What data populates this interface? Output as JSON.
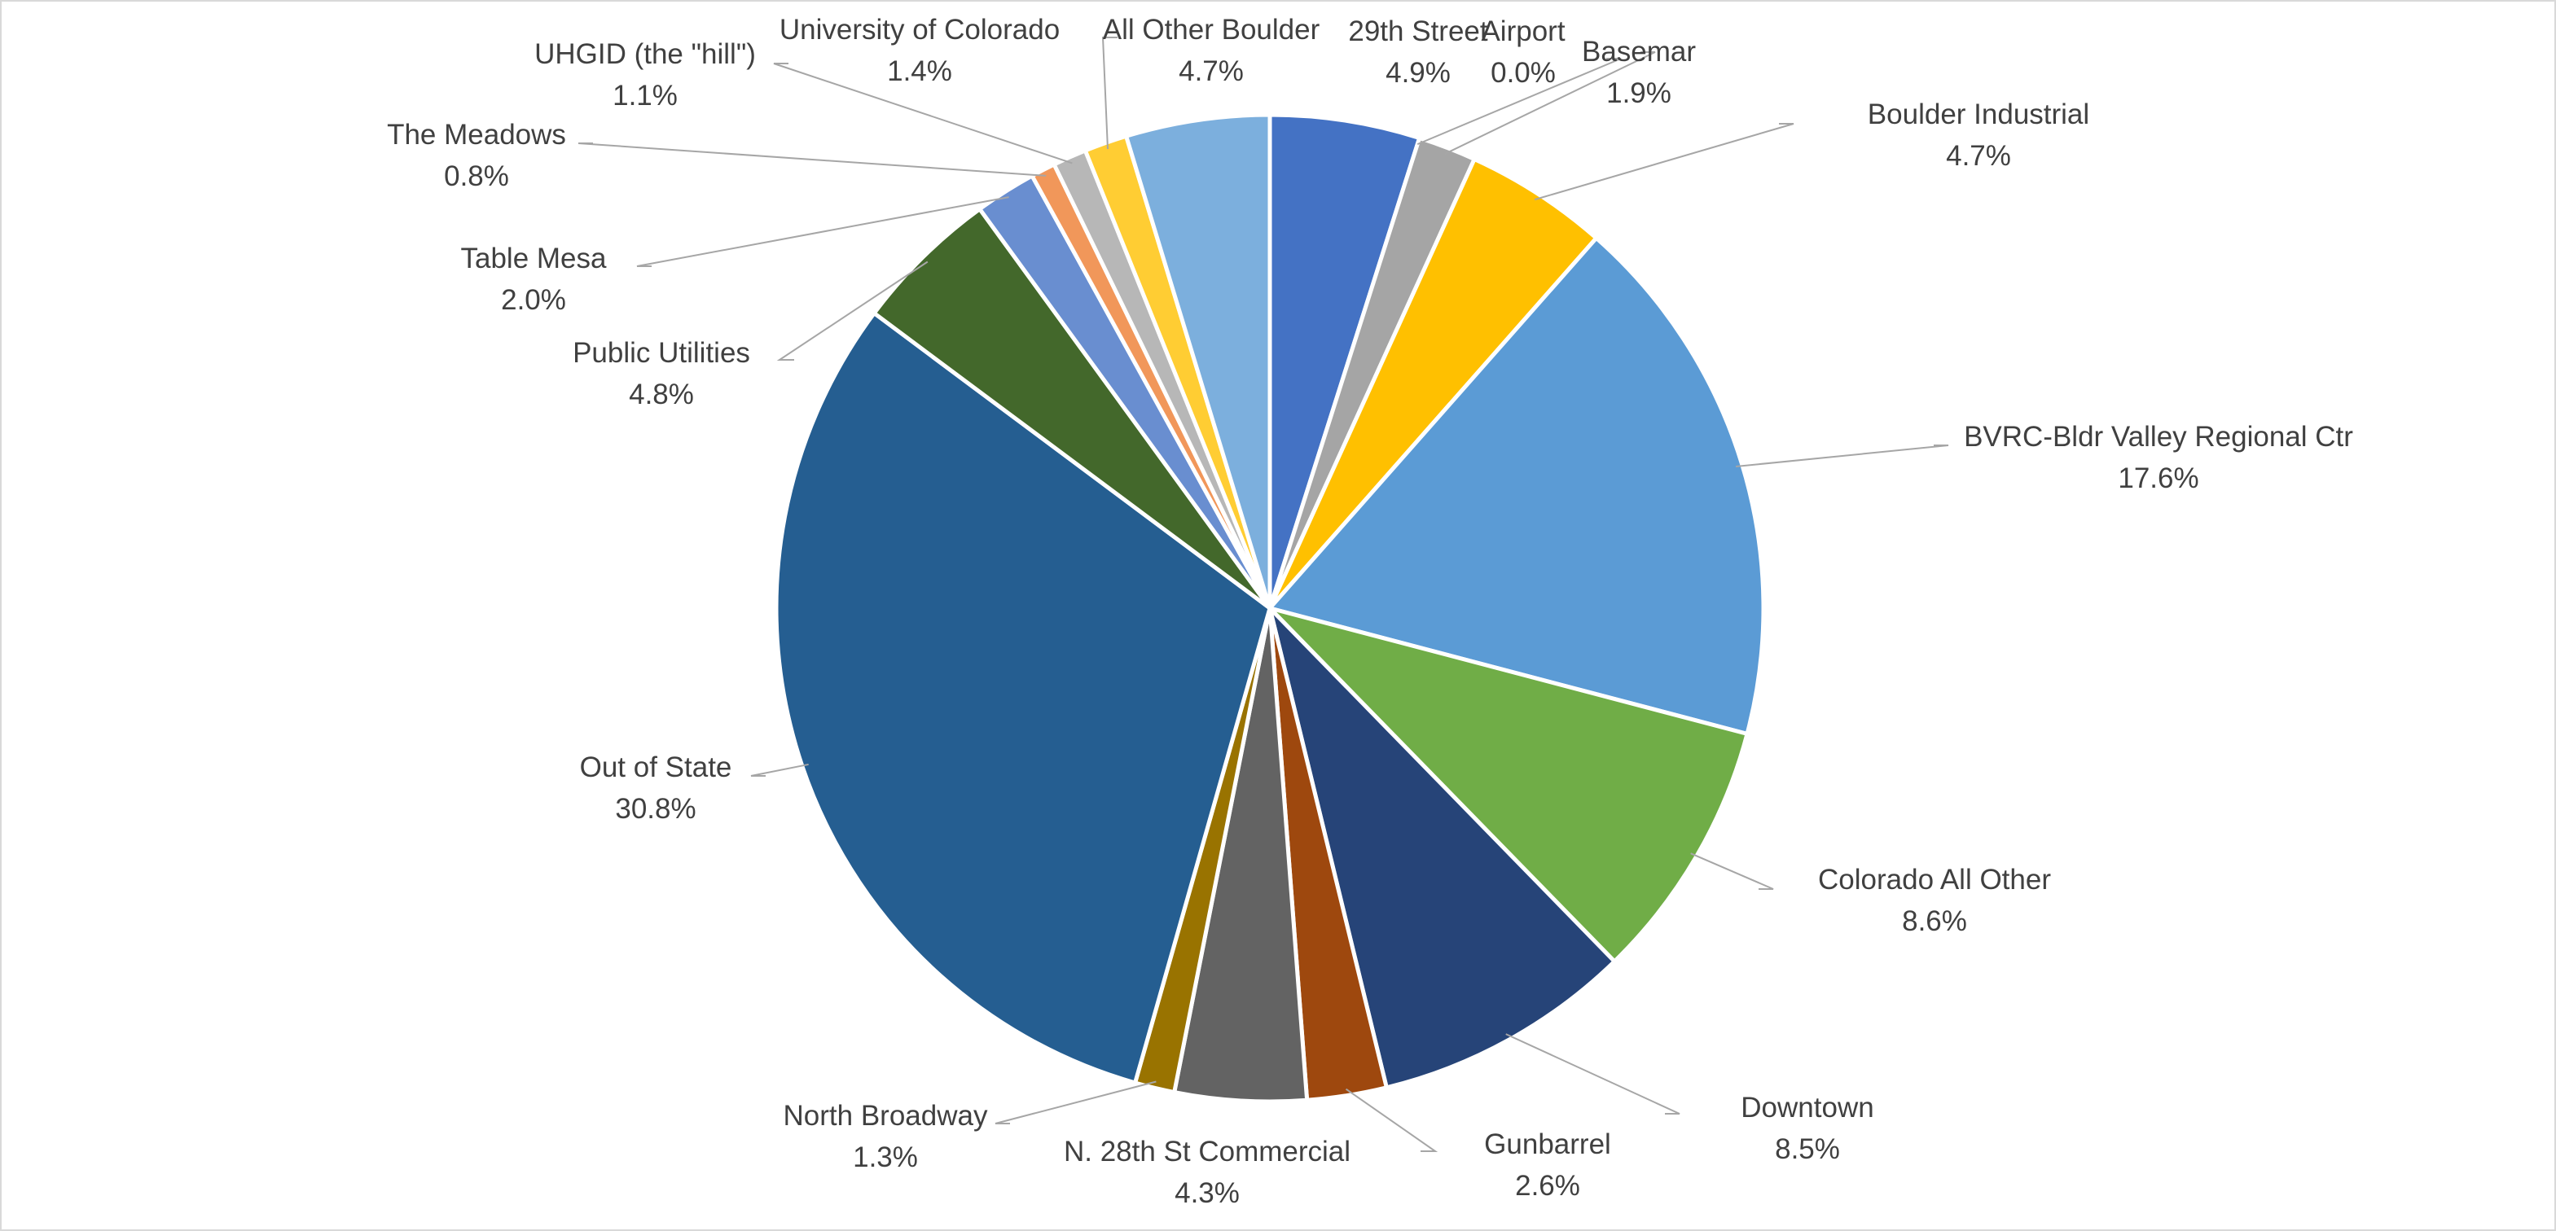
{
  "chart_data": {
    "type": "pie",
    "title": "",
    "start_angle_deg": 0,
    "direction": "clockwise",
    "legend": "none",
    "slices": [
      {
        "label": "29th Street",
        "value": 4.9,
        "pct_label": "4.9%",
        "color": "#4472c4"
      },
      {
        "label": "Airport",
        "value": 0.0,
        "pct_label": "0.0%",
        "color": "#ed7d31"
      },
      {
        "label": "Basemar",
        "value": 1.9,
        "pct_label": "1.9%",
        "color": "#a5a5a5"
      },
      {
        "label": "Boulder Industrial",
        "value": 4.7,
        "pct_label": "4.7%",
        "color": "#ffc000"
      },
      {
        "label": "BVRC-Bldr Valley Regional Ctr",
        "value": 17.6,
        "pct_label": "17.6%",
        "color": "#5b9bd5"
      },
      {
        "label": "Colorado All Other",
        "value": 8.6,
        "pct_label": "8.6%",
        "color": "#70ad47"
      },
      {
        "label": "Downtown",
        "value": 8.5,
        "pct_label": "8.5%",
        "color": "#264478"
      },
      {
        "label": "Gunbarrel",
        "value": 2.6,
        "pct_label": "2.6%",
        "color": "#9e480e"
      },
      {
        "label": "N. 28th St Commercial",
        "value": 4.3,
        "pct_label": "4.3%",
        "color": "#636363"
      },
      {
        "label": "North Broadway",
        "value": 1.3,
        "pct_label": "1.3%",
        "color": "#997300"
      },
      {
        "label": "Out of State",
        "value": 30.8,
        "pct_label": "30.8%",
        "color": "#255e91"
      },
      {
        "label": "Public Utilities",
        "value": 4.8,
        "pct_label": "4.8%",
        "color": "#43682b"
      },
      {
        "label": "Table Mesa",
        "value": 2.0,
        "pct_label": "2.0%",
        "color": "#698ed0"
      },
      {
        "label": "The Meadows",
        "value": 0.8,
        "pct_label": "0.8%",
        "color": "#f1975a"
      },
      {
        "label": "UHGID (the \"hill\")",
        "value": 1.1,
        "pct_label": "1.1%",
        "color": "#b7b7b7"
      },
      {
        "label": "University of Colorado",
        "value": 1.4,
        "pct_label": "1.4%",
        "color": "#ffcd33"
      },
      {
        "label": "All Other Boulder",
        "value": 4.7,
        "pct_label": "4.7%",
        "color": "#7cafdd"
      }
    ]
  }
}
